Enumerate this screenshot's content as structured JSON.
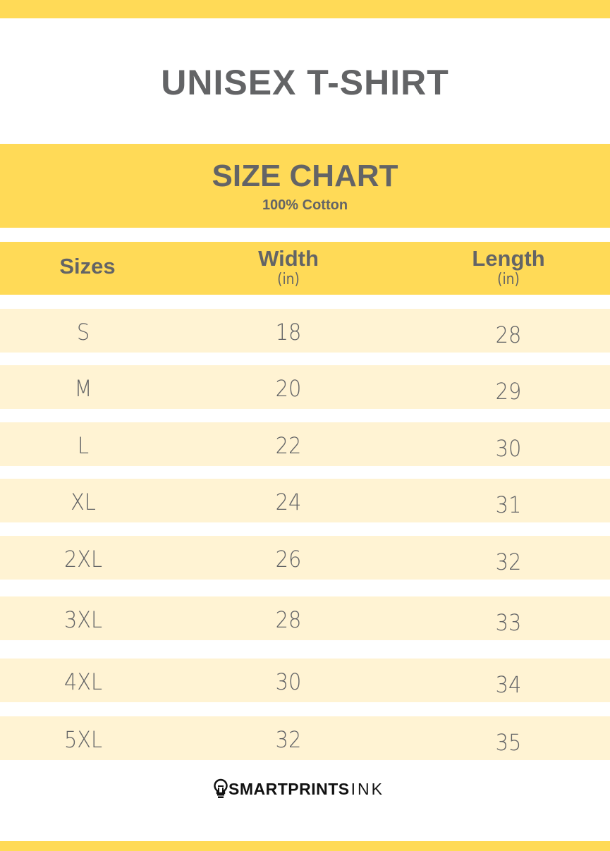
{
  "title": "UNISEX T-SHIRT",
  "chart_heading": "SIZE CHART",
  "material": "100% Cotton",
  "columns": [
    {
      "label": "Sizes",
      "unit": ""
    },
    {
      "label": "Width",
      "unit": "(in)"
    },
    {
      "label": "Length",
      "unit": "(in)"
    }
  ],
  "rows": [
    {
      "size": "S",
      "width": "18",
      "length": "28"
    },
    {
      "size": "M",
      "width": "20",
      "length": "29"
    },
    {
      "size": "L",
      "width": "22",
      "length": "30"
    },
    {
      "size": "XL",
      "width": "24",
      "length": "31"
    },
    {
      "size": "2XL",
      "width": "26",
      "length": "32"
    },
    {
      "size": "3XL",
      "width": "28",
      "length": "33"
    },
    {
      "size": "4XL",
      "width": "30",
      "length": "34"
    },
    {
      "size": "5XL",
      "width": "32",
      "length": "35"
    }
  ],
  "brand": {
    "bold": "SMARTPRINTS",
    "thin": "INK",
    "icon": "lightbulb-icon"
  },
  "colors": {
    "accent": "#ffda57",
    "row": "#fff3d3",
    "text": "#636466"
  }
}
